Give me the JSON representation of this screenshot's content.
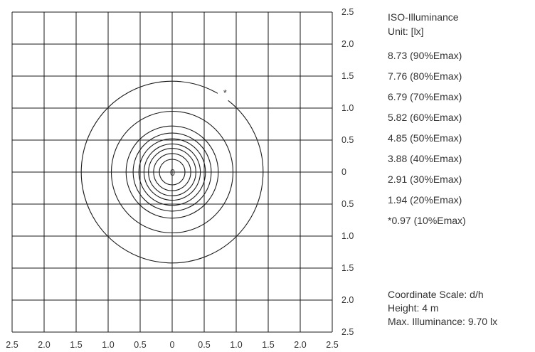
{
  "chart_data": {
    "type": "contour",
    "legend_title": "ISO-Illuminance",
    "unit_label": "Unit: [lx]",
    "x_ticks": [
      "2.5",
      "2.0",
      "1.5",
      "1.0",
      "0.5",
      "0",
      "0.5",
      "1.0",
      "1.5",
      "2.0",
      "2.5"
    ],
    "y_ticks": [
      "2.5",
      "2.0",
      "1.5",
      "1.0",
      "0.5",
      "0",
      "0.5",
      "1.0",
      "1.5",
      "2.0",
      "2.5"
    ],
    "xlim": [
      -2.5,
      2.5
    ],
    "ylim": [
      -2.5,
      2.5
    ],
    "grid": true,
    "center_label": "0",
    "levels": [
      {
        "label": "8.73 (90%Emax)",
        "value": 8.73,
        "radius": 0.2
      },
      {
        "label": "7.76 (80%Emax)",
        "value": 7.76,
        "radius": 0.29
      },
      {
        "label": "6.79 (70%Emax)",
        "value": 6.79,
        "radius": 0.37
      },
      {
        "label": "5.82 (60%Emax)",
        "value": 5.82,
        "radius": 0.44
      },
      {
        "label": "4.85 (50%Emax)",
        "value": 4.85,
        "radius": 0.52
      },
      {
        "label": "3.88 (40%Emax)",
        "value": 3.88,
        "radius": 0.61
      },
      {
        "label": "2.91 (30%Emax)",
        "value": 2.91,
        "radius": 0.72
      },
      {
        "label": "1.94 (20%Emax)",
        "value": 1.94,
        "radius": 0.95
      },
      {
        "label": "*0.97 (10%Emax)",
        "value": 0.97,
        "radius": 1.42,
        "marker": "*"
      }
    ],
    "coordinate_scale": "Coordinate Scale: d/h",
    "height": "Height: 4 m",
    "max_illuminance": "Max. Illuminance: 9.70 lx",
    "line_color": "#1a1a1a",
    "text_color": "#333333"
  }
}
